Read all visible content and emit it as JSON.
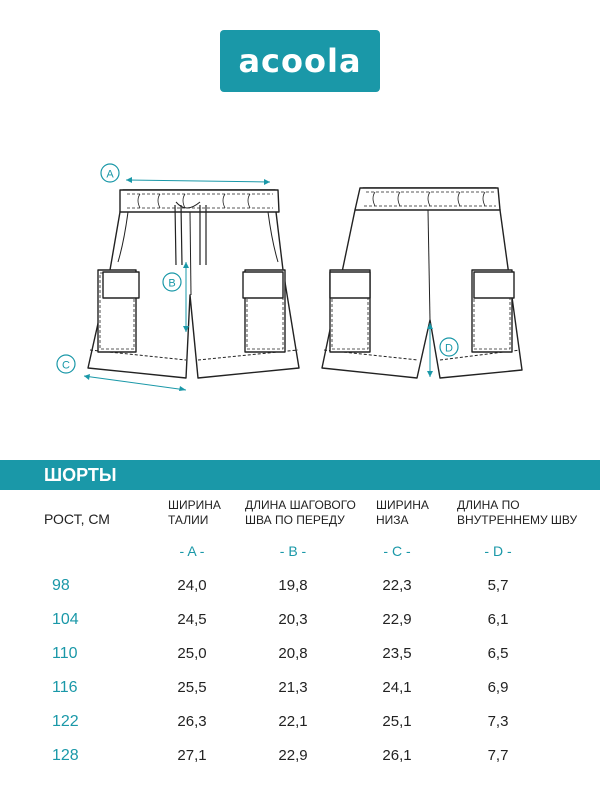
{
  "logo": {
    "text": "acoola"
  },
  "markers": {
    "a": "A",
    "b": "B",
    "c": "C",
    "d": "D"
  },
  "table": {
    "title": "ШОРТЫ",
    "row_header": "РОСТ, СМ",
    "columns": [
      {
        "line1": "ШИРИНА",
        "line2": "ТАЛИИ",
        "letter": "- A -"
      },
      {
        "line1": "ДЛИНА ШАГОВОГО",
        "line2": "ШВА ПО ПЕРЕДУ",
        "letter": "- B -"
      },
      {
        "line1": "ШИРИНА",
        "line2": "НИЗА",
        "letter": "- C -"
      },
      {
        "line1": "ДЛИНА ПО",
        "line2": "ВНУТРЕННЕМУ ШВУ",
        "letter": "- D -"
      }
    ],
    "rows": [
      {
        "size": "98",
        "a": "24,0",
        "b": "19,8",
        "c": "22,3",
        "d": "5,7"
      },
      {
        "size": "104",
        "a": "24,5",
        "b": "20,3",
        "c": "22,9",
        "d": "6,1"
      },
      {
        "size": "110",
        "a": "25,0",
        "b": "20,8",
        "c": "23,5",
        "d": "6,5"
      },
      {
        "size": "116",
        "a": "25,5",
        "b": "21,3",
        "c": "24,1",
        "d": "6,9"
      },
      {
        "size": "122",
        "a": "26,3",
        "b": "22,1",
        "c": "25,1",
        "d": "7,3"
      },
      {
        "size": "128",
        "a": "27,1",
        "b": "22,9",
        "c": "26,1",
        "d": "7,7"
      }
    ]
  },
  "colors": {
    "accent": "#1a98a8",
    "text": "#1e1e1e",
    "line": "#222222"
  }
}
